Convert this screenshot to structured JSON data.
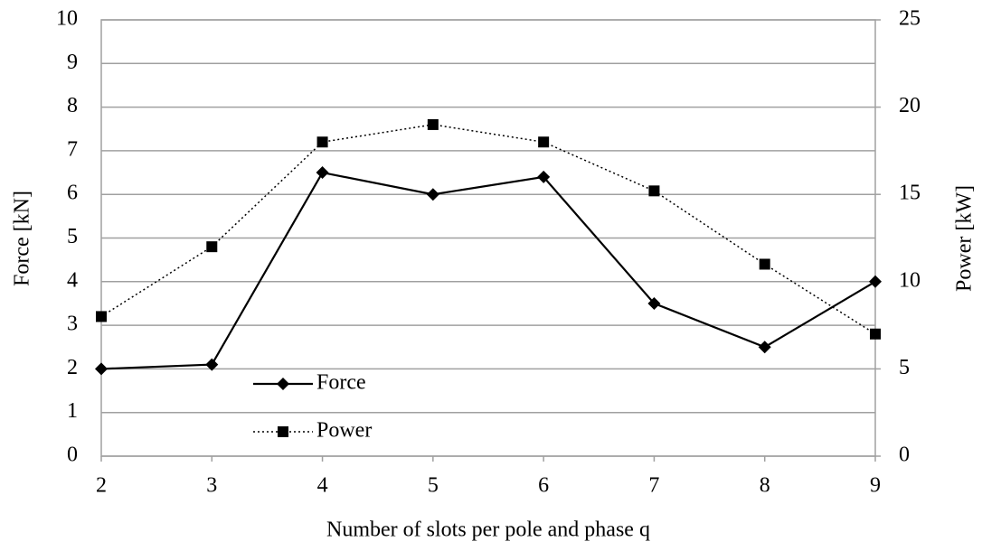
{
  "chart_data": {
    "type": "line",
    "x_label": "Number of slots per pole and phase q",
    "y_label": "Force [kN]",
    "y2_label": "Power [kW]",
    "x": [
      2,
      3,
      4,
      5,
      6,
      7,
      8,
      9
    ],
    "xlim": [
      2,
      9
    ],
    "xticks": [
      2,
      3,
      4,
      5,
      6,
      7,
      8,
      9
    ],
    "ylim": [
      0,
      10
    ],
    "yticks": [
      0,
      1,
      2,
      3,
      4,
      5,
      6,
      7,
      8,
      9,
      10
    ],
    "y2lim": [
      0,
      25
    ],
    "y2ticks": [
      0,
      5,
      10,
      15,
      20,
      25
    ],
    "grid": true,
    "legend": "lower left",
    "series": [
      {
        "name": "Force",
        "color": "#000000",
        "marker": "diamond",
        "line": "solid",
        "values": [
          2.0,
          2.1,
          6.5,
          6.0,
          6.4,
          3.5,
          2.5,
          4.0
        ]
      },
      {
        "name": "Power",
        "color": "#000000",
        "marker": "square",
        "line": "dotted",
        "axis": "y2",
        "values": [
          8,
          12,
          18,
          19,
          18,
          15.2,
          11,
          7
        ]
      }
    ]
  }
}
